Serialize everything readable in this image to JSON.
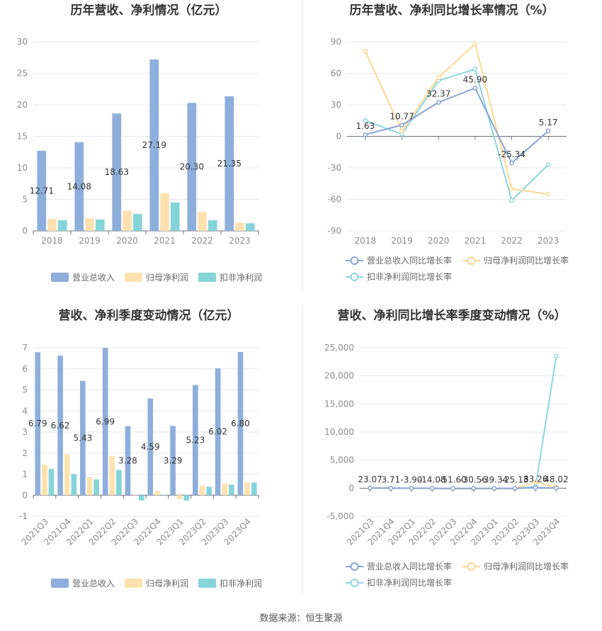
{
  "colors": {
    "revenue": "#8eaedc",
    "net_profit": "#fde2b0",
    "deducted_profit": "#85d4d8",
    "revenue_line": "#8ba4d2",
    "net_line": "#fcd995",
    "deducted_line": "#8fd6da"
  },
  "source_text": "数据来源：恒生聚源",
  "chart_data": [
    {
      "id": "annual_rev_profit",
      "type": "bar",
      "title": "历年营收、净利情况（亿元）",
      "categories": [
        "2018",
        "2019",
        "2020",
        "2021",
        "2022",
        "2023"
      ],
      "ylim": [
        0,
        30
      ],
      "yticks": [
        0,
        5,
        10,
        15,
        20,
        25,
        30
      ],
      "series": [
        {
          "name": "营业总收入",
          "values": [
            12.71,
            14.08,
            18.63,
            27.19,
            20.3,
            21.35
          ],
          "labels": [
            "12.71",
            "14.08",
            "18.63",
            "27.19",
            "20.30",
            "21.35"
          ]
        },
        {
          "name": "归母净利润",
          "values": [
            1.9,
            2.0,
            3.2,
            6.0,
            3.0,
            1.3
          ]
        },
        {
          "name": "扣非净利润",
          "values": [
            1.7,
            1.8,
            2.7,
            4.5,
            1.7,
            1.2
          ]
        }
      ],
      "legend": "bottom"
    },
    {
      "id": "annual_growth",
      "type": "line",
      "title": "历年营收、净利同比增长率情况（%）",
      "categories": [
        "2018",
        "2019",
        "2020",
        "2021",
        "2022",
        "2023"
      ],
      "ylim": [
        -90,
        90
      ],
      "yticks": [
        -90,
        -60,
        -30,
        0,
        30,
        60,
        90
      ],
      "series": [
        {
          "name": "营业总收入同比增长率",
          "values": [
            1.63,
            10.77,
            32.37,
            45.9,
            -25.34,
            5.17
          ],
          "labels": [
            "1.63",
            "10.77",
            "32.37",
            "45.90",
            "-25.34",
            "5.17"
          ]
        },
        {
          "name": "归母净利润同比增长率",
          "values": [
            81,
            5,
            56,
            88,
            -50,
            -55
          ]
        },
        {
          "name": "扣非净利润同比增长率",
          "values": [
            15,
            2,
            53,
            64,
            -61,
            -27
          ]
        }
      ],
      "legend": "bottom"
    },
    {
      "id": "quarterly_rev_profit",
      "type": "bar",
      "title": "营收、净利季度变动情况（亿元）",
      "categories": [
        "2021Q3",
        "2021Q4",
        "2022Q1",
        "2022Q2",
        "2022Q3",
        "2022Q4",
        "2023Q1",
        "2023Q2",
        "2023Q3",
        "2023Q4"
      ],
      "ylim": [
        -1,
        7
      ],
      "yticks": [
        -1,
        0,
        1,
        2,
        3,
        4,
        5,
        6,
        7
      ],
      "series": [
        {
          "name": "营业总收入",
          "values": [
            6.79,
            6.62,
            5.43,
            6.99,
            3.28,
            4.59,
            3.29,
            5.23,
            6.02,
            6.8
          ],
          "labels": [
            "6.79",
            "6.62",
            "5.43",
            "6.99",
            "3.28",
            "4.59",
            "3.29",
            "5.23",
            "6.02",
            "6.80"
          ]
        },
        {
          "name": "归母净利润",
          "values": [
            1.45,
            1.95,
            0.85,
            1.85,
            0.0,
            0.2,
            -0.2,
            0.45,
            0.55,
            0.6
          ]
        },
        {
          "name": "扣非净利润",
          "values": [
            1.25,
            1.0,
            0.75,
            1.2,
            -0.25,
            0.0,
            -0.25,
            0.4,
            0.5,
            0.6
          ]
        }
      ],
      "legend": "bottom"
    },
    {
      "id": "quarterly_growth",
      "type": "line",
      "title": "营收、净利同比增长率季度变动情况（%）",
      "categories": [
        "2021Q3",
        "2021Q4",
        "2022Q1",
        "2022Q2",
        "2022Q3",
        "2022Q4",
        "2023Q1",
        "2023Q2",
        "2023Q3",
        "2023Q4"
      ],
      "ylim": [
        -5000,
        25000
      ],
      "yticks": [
        -5000,
        0,
        5000,
        10000,
        15000,
        20000,
        25000
      ],
      "ytick_labels": [
        "-5,000",
        "0",
        "5,000",
        "10,000",
        "15,000",
        "20,000",
        "25,000"
      ],
      "series": [
        {
          "name": "营业总收入同比增长率",
          "values": [
            23.07,
            3.71,
            -3.9,
            -14.08,
            -51.6,
            -30.56,
            -39.34,
            -25.13,
            83.26,
            48.02
          ],
          "labels": [
            "23.07",
            "3.71",
            "-3.90",
            "-14.08",
            "-51.60",
            "-30.56",
            "-39.34",
            "-25.13",
            "83.26",
            "48.02"
          ]
        },
        {
          "name": "归母净利润同比增长率",
          "values": [
            30,
            20,
            -20,
            -10,
            -100,
            -90,
            -110,
            -60,
            1100,
            200
          ]
        },
        {
          "name": "扣非净利润同比增长率",
          "values": [
            40,
            15,
            -25,
            -15,
            -105,
            -100,
            -105,
            -80,
            300,
            23500
          ]
        }
      ],
      "legend": "bottom"
    }
  ]
}
